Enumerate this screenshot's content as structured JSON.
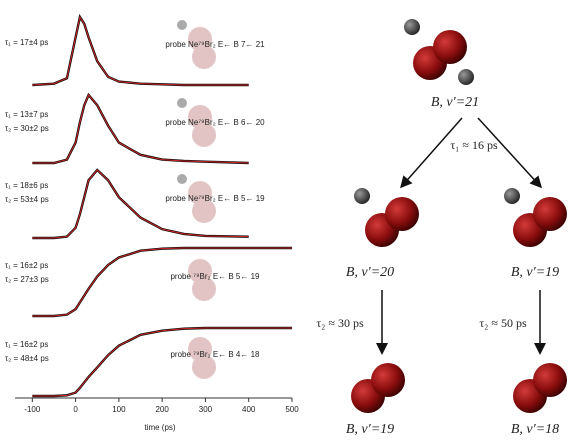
{
  "chart_data": {
    "type": "line",
    "xlabel": "time (ps)",
    "xlim": [
      -140,
      500
    ],
    "xticks": [
      -100,
      0,
      100,
      200,
      300,
      400,
      500
    ],
    "x": [
      -100,
      -50,
      -20,
      0,
      10,
      20,
      30,
      50,
      75,
      100,
      150,
      200,
      250,
      300,
      400,
      500
    ],
    "series": [
      {
        "color": "#cc2222",
        "annotations": [
          "τ₁ = 17±4 ps"
        ],
        "probe": "probe Ne⁷⁹Br₂ E← B 7← 21",
        "values": [
          0,
          0.02,
          0.1,
          0.7,
          1.0,
          0.9,
          0.7,
          0.35,
          0.12,
          0.05,
          0.02,
          0.01,
          0,
          0,
          0,
          null
        ]
      },
      {
        "color": "#cc2222",
        "annotations": [
          "τ₁ = 13±7 ps",
          "τ₂ = 30±2 ps"
        ],
        "probe": "probe Ne⁷⁹Br₂ E← B 6← 20",
        "values": [
          0,
          0,
          0.05,
          0.3,
          0.6,
          0.85,
          1.0,
          0.85,
          0.55,
          0.3,
          0.12,
          0.05,
          0.03,
          0.02,
          0,
          null
        ]
      },
      {
        "color": "#cc2222",
        "annotations": [
          "τ₁ = 18±6 ps",
          "τ₂ = 53±4 ps"
        ],
        "probe": "probe Ne⁷⁹Br₂ E← B 5← 19",
        "values": [
          0,
          0,
          0.02,
          0.15,
          0.35,
          0.6,
          0.85,
          1.0,
          0.85,
          0.6,
          0.3,
          0.13,
          0.06,
          0.03,
          0.02,
          null
        ]
      },
      {
        "color": "#cc2222",
        "annotations": [
          "τ₁ = 16±2 ps",
          "τ₂ = 27±3 ps"
        ],
        "probe": "probe ⁷⁹Br₂ E← B 5← 19",
        "values": [
          0,
          0,
          0.02,
          0.1,
          0.2,
          0.3,
          0.4,
          0.58,
          0.75,
          0.86,
          0.96,
          0.99,
          1,
          1,
          1,
          1
        ]
      },
      {
        "color": "#cc2222",
        "annotations": [
          "τ₁ = 16±2 ps",
          "τ₂ = 48±4 ps"
        ],
        "probe": "probe ⁷⁹Br₂ E← B 4← 18",
        "values": [
          0,
          0,
          0.01,
          0.05,
          0.12,
          0.2,
          0.28,
          0.42,
          0.6,
          0.74,
          0.9,
          0.96,
          0.99,
          1,
          1,
          1
        ]
      }
    ]
  },
  "diagram": {
    "top": "B, v′=21",
    "tau1": "τ₁ ≈ 16 ps",
    "mid_left": "B, v′=20",
    "mid_right": "B, v′=19",
    "tau2_left": "τ₂ ≈ 30 ps",
    "tau2_right": "τ₂ ≈ 50 ps",
    "bottom_left": "B, v′=19",
    "bottom_right": "B, v′=18"
  }
}
